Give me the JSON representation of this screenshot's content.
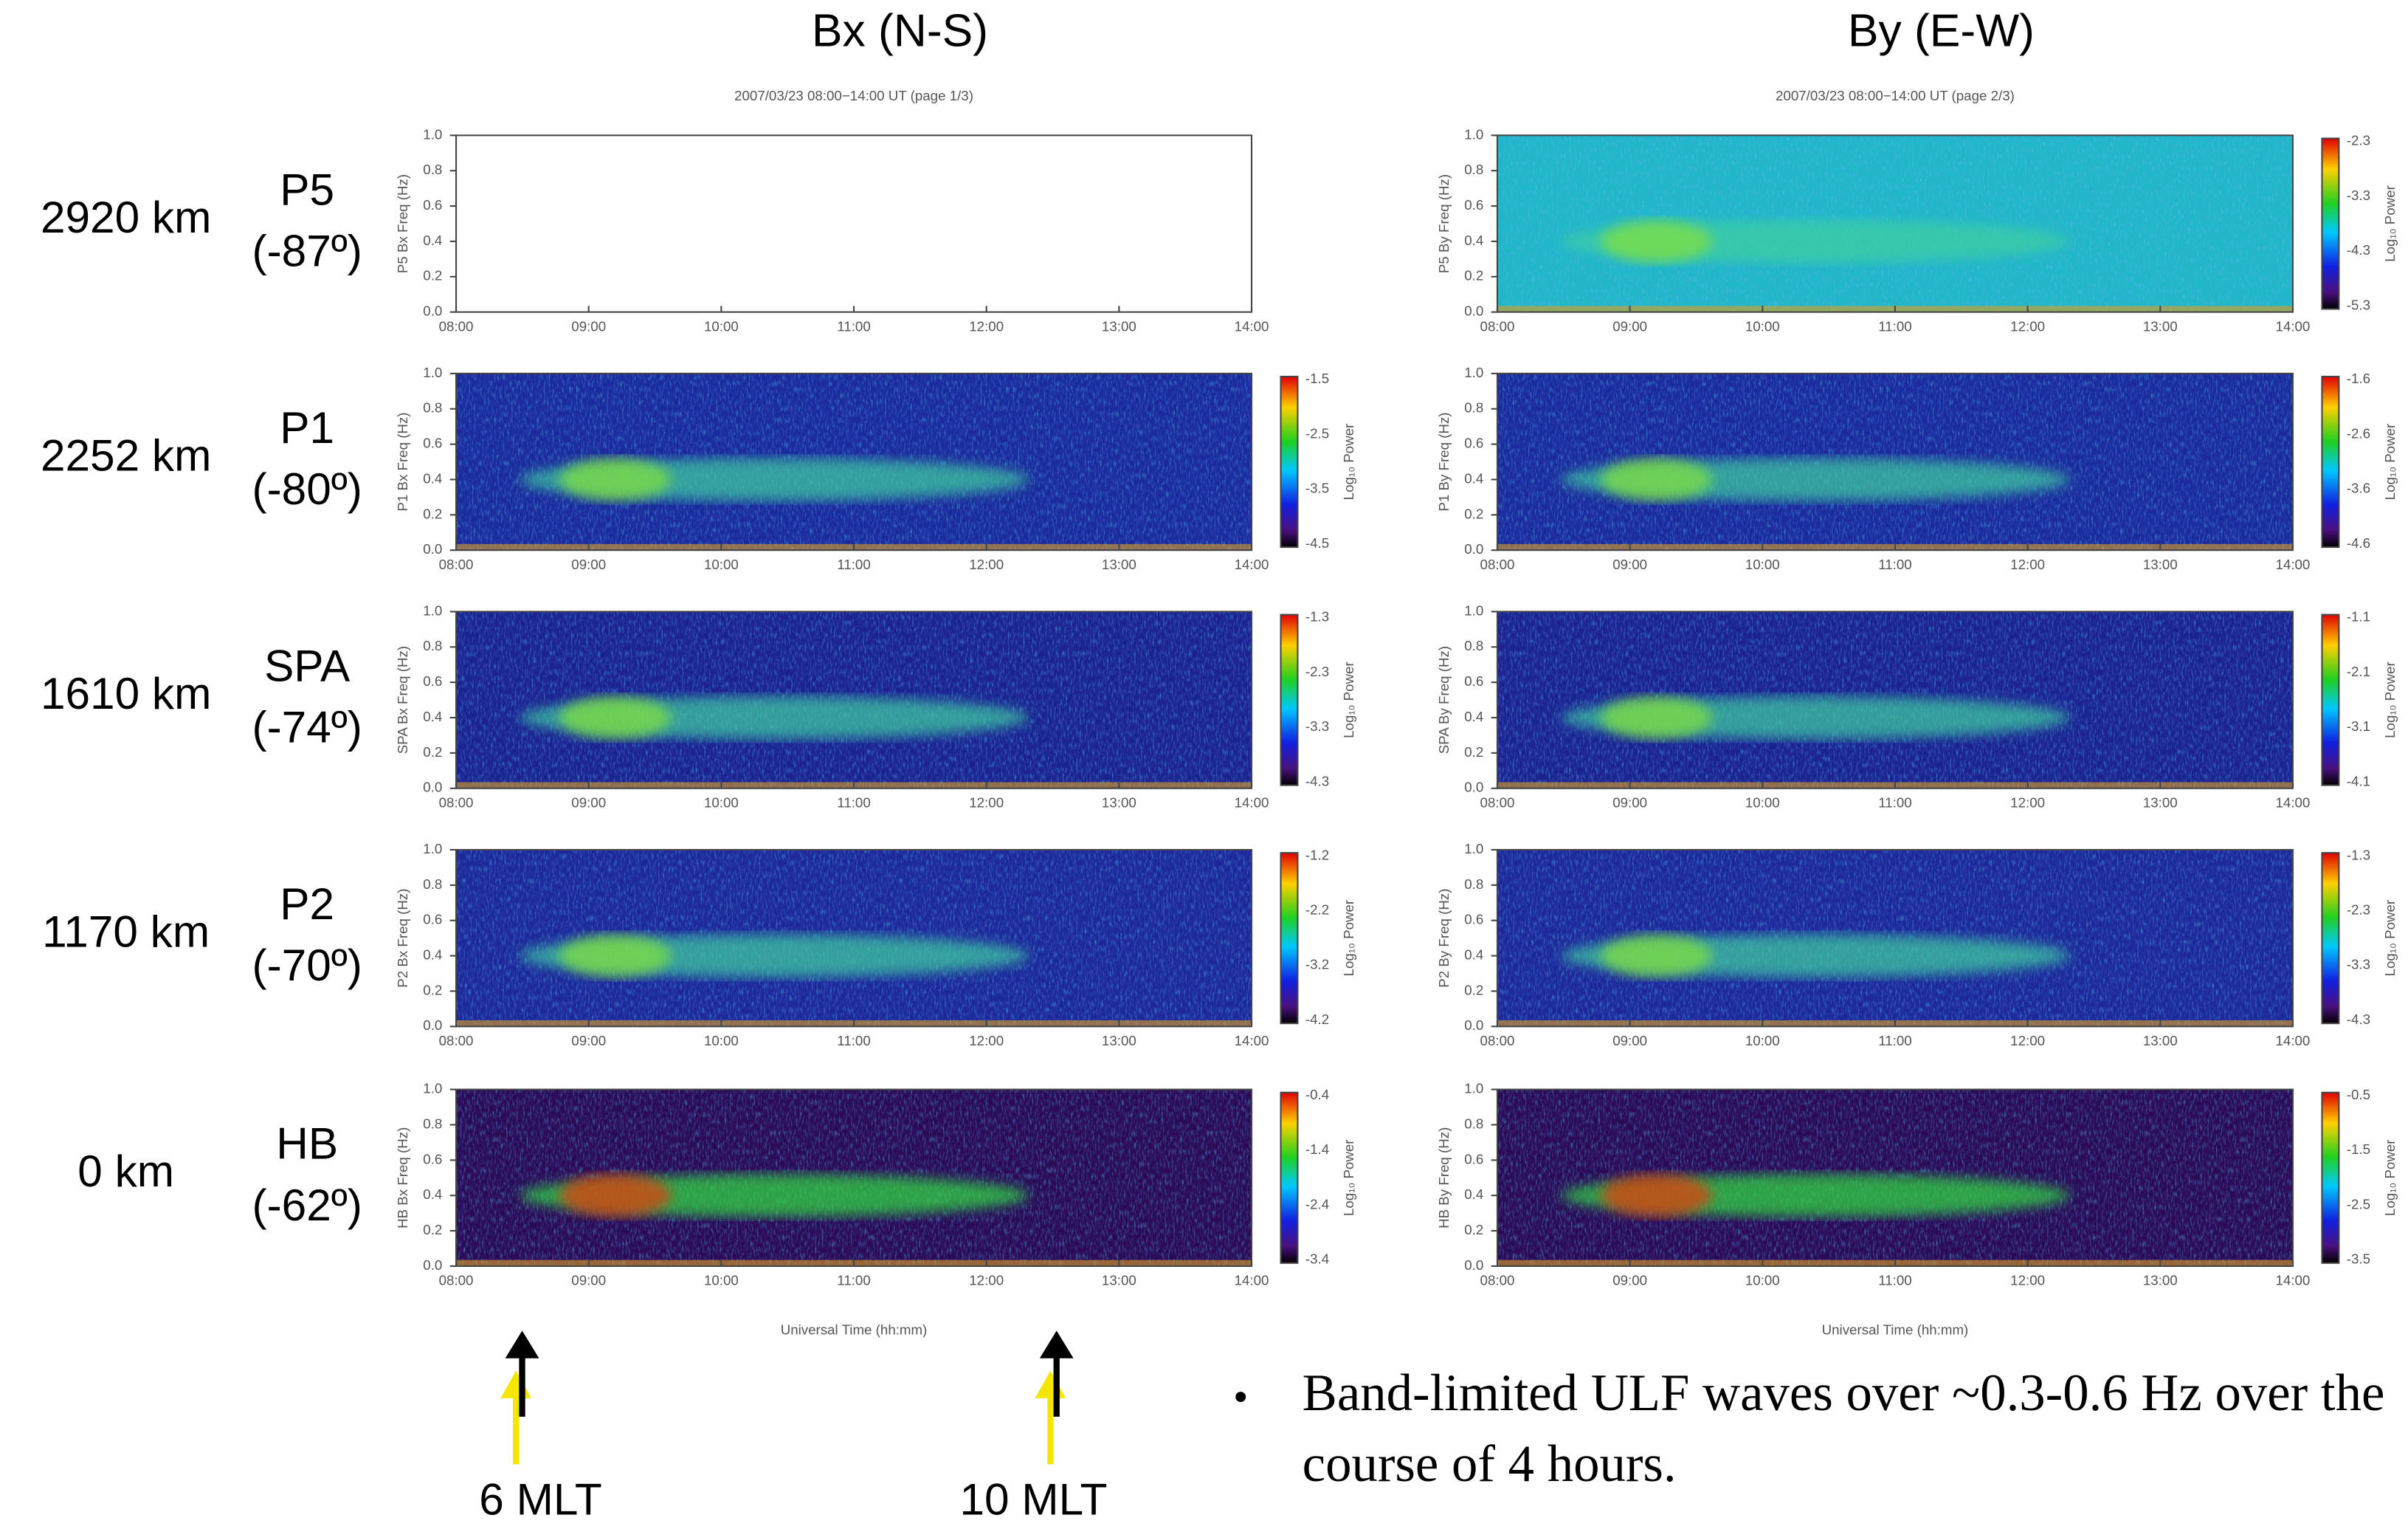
{
  "columns": [
    {
      "title": "Bx (N-S)",
      "subtitle": "2007/03/23  08:00−14:00 UT  (page 1/3)",
      "panels": [
        {
          "y_label": "P5 Bx Freq (Hz)",
          "colorbar": null
        },
        {
          "y_label": "P1 Bx Freq (Hz)",
          "colorbar": [
            "-1.5",
            "-2.5",
            "-3.5",
            "-4.5"
          ]
        },
        {
          "y_label": "SPA Bx Freq (Hz)",
          "colorbar": [
            "-1.3",
            "-2.3",
            "-3.3",
            "-4.3"
          ]
        },
        {
          "y_label": "P2 Bx Freq (Hz)",
          "colorbar": [
            "-1.2",
            "-2.2",
            "-3.2",
            "-4.2"
          ]
        },
        {
          "y_label": "HB Bx Freq (Hz)",
          "colorbar": [
            "-0.4",
            "-1.4",
            "-2.4",
            "-3.4"
          ]
        }
      ]
    },
    {
      "title": "By (E-W)",
      "subtitle": "2007/03/23  08:00−14:00 UT  (page 2/3)",
      "panels": [
        {
          "y_label": "P5 By Freq (Hz)",
          "colorbar": [
            "-2.3",
            "-3.3",
            "-4.3",
            "-5.3"
          ]
        },
        {
          "y_label": "P1 By Freq (Hz)",
          "colorbar": [
            "-1.6",
            "-2.6",
            "-3.6",
            "-4.6"
          ]
        },
        {
          "y_label": "SPA By Freq (Hz)",
          "colorbar": [
            "-1.1",
            "-2.1",
            "-3.1",
            "-4.1"
          ]
        },
        {
          "y_label": "P2 By Freq (Hz)",
          "colorbar": [
            "-1.3",
            "-2.3",
            "-3.3",
            "-4.3"
          ]
        },
        {
          "y_label": "HB By Freq (Hz)",
          "colorbar": [
            "-0.5",
            "-1.5",
            "-2.5",
            "-3.5"
          ]
        }
      ]
    }
  ],
  "stations": [
    {
      "altitude": "2920 km",
      "name": "P5",
      "latitude": "(-87º)"
    },
    {
      "altitude": "2252 km",
      "name": "P1",
      "latitude": "(-80º)"
    },
    {
      "altitude": "1610 km",
      "name": "SPA",
      "latitude": "(-74º)"
    },
    {
      "altitude": "1170 km",
      "name": "P2",
      "latitude": "(-70º)"
    },
    {
      "altitude": "0 km",
      "name": "HB",
      "latitude": "(-62º)"
    }
  ],
  "freq_ticks": [
    "0.0",
    "0.2",
    "0.4",
    "0.6",
    "0.8",
    "1.0"
  ],
  "time_ticks": [
    "08:00",
    "09:00",
    "10:00",
    "11:00",
    "12:00",
    "13:00",
    "14:00"
  ],
  "x_label": "Universal Time (hh:mm)",
  "colorbar_label": "Log₁₀ Power",
  "arrows": [
    "6 MLT",
    "10 MLT"
  ],
  "bullet": [
    "Band-limited ULF waves over ~0.3-0.6 Hz over the",
    "course of 4 hours."
  ]
}
